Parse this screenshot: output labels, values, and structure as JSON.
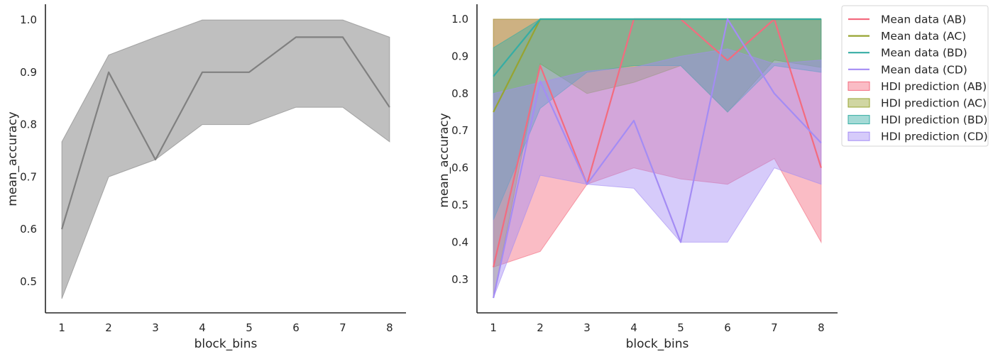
{
  "chart_data": [
    {
      "type": "line",
      "xlabel": "block_bins",
      "ylabel": "mean_accuracy",
      "xlim": [
        0.65,
        8.35
      ],
      "ylim": [
        0.44,
        1.03
      ],
      "xticks": [
        1,
        2,
        3,
        4,
        5,
        6,
        7,
        8
      ],
      "yticks": [
        0.5,
        0.6,
        0.7,
        0.8,
        0.9,
        1.0
      ],
      "ytick_labels": [
        "0.5",
        "0.6",
        "0.7",
        "0.8",
        "0.9",
        "1.0"
      ],
      "grid": false,
      "series": [
        {
          "x": [
            1,
            2,
            3,
            4,
            5,
            6,
            7,
            8
          ],
          "mean": [
            0.6,
            0.9,
            0.733,
            0.9,
            0.9,
            0.967,
            0.967,
            0.833
          ],
          "band_lower": [
            0.467,
            0.7,
            0.733,
            0.8,
            0.8,
            0.833,
            0.833,
            0.767
          ],
          "band_upper": [
            0.767,
            0.933,
            0.967,
            1.0,
            1.0,
            1.0,
            1.0,
            0.967
          ],
          "color": "#808080"
        }
      ]
    },
    {
      "type": "line",
      "xlabel": "block_bins",
      "ylabel": "mean_accuracy",
      "xlim": [
        0.65,
        8.35
      ],
      "ylim": [
        0.21,
        1.04
      ],
      "xticks": [
        1,
        2,
        3,
        4,
        5,
        6,
        7,
        8
      ],
      "yticks": [
        0.3,
        0.4,
        0.5,
        0.6,
        0.7,
        0.8,
        0.9,
        1.0
      ],
      "ytick_labels": [
        "0.3",
        "0.4",
        "0.5",
        "0.6",
        "0.7",
        "0.8",
        "0.9",
        "1.0"
      ],
      "grid": false,
      "legend_position": "outside-right",
      "series": [
        {
          "name": "Mean data (AB)",
          "band_name": "HDI prediction (AB)",
          "color": "#f36b7f",
          "x": [
            1,
            2,
            3,
            4,
            5,
            6,
            7,
            8
          ],
          "mean": [
            0.333,
            0.875,
            0.556,
            1.0,
            1.0,
            0.889,
            1.0,
            0.6
          ],
          "band_lower": [
            0.333,
            0.375,
            0.556,
            0.6,
            0.57,
            0.556,
            0.625,
            0.4
          ],
          "band_upper": [
            1.0,
            1.0,
            1.0,
            1.0,
            1.0,
            1.0,
            1.0,
            1.0
          ]
        },
        {
          "name": "Mean data (AC)",
          "band_name": "HDI prediction (AC)",
          "color": "#97a431",
          "x": [
            1,
            2,
            3,
            4,
            5,
            6,
            7,
            8
          ],
          "mean": [
            0.75,
            1.0,
            1.0,
            1.0,
            1.0,
            1.0,
            1.0,
            1.0
          ],
          "band_lower": [
            0.25,
            0.88,
            0.8,
            0.83,
            0.875,
            0.75,
            0.89,
            0.87
          ],
          "band_upper": [
            1.0,
            1.0,
            1.0,
            1.0,
            1.0,
            1.0,
            1.0,
            1.0
          ]
        },
        {
          "name": "Mean data (BD)",
          "band_name": "HDI prediction (BD)",
          "color": "#36ada4",
          "x": [
            1,
            2,
            3,
            4,
            5,
            6,
            7,
            8
          ],
          "mean": [
            0.846,
            1.0,
            1.0,
            1.0,
            1.0,
            1.0,
            1.0,
            1.0
          ],
          "band_lower": [
            0.46,
            0.76,
            0.857,
            0.875,
            0.875,
            0.75,
            0.875,
            0.857
          ],
          "band_upper": [
            0.923,
            1.0,
            1.0,
            1.0,
            1.0,
            1.0,
            1.0,
            1.0
          ]
        },
        {
          "name": "Mean data (CD)",
          "band_name": "HDI prediction (CD)",
          "color": "#a48cf4",
          "x": [
            1,
            2,
            3,
            4,
            5,
            6,
            7,
            8
          ],
          "mean": [
            0.25,
            0.833,
            0.556,
            0.727,
            0.4,
            1.0,
            0.8,
            0.667
          ],
          "band_lower": [
            0.25,
            0.58,
            0.556,
            0.545,
            0.4,
            0.4,
            0.6,
            0.556
          ],
          "band_upper": [
            0.8,
            0.83,
            0.86,
            0.87,
            0.9,
            0.92,
            0.88,
            0.89
          ]
        }
      ]
    }
  ]
}
